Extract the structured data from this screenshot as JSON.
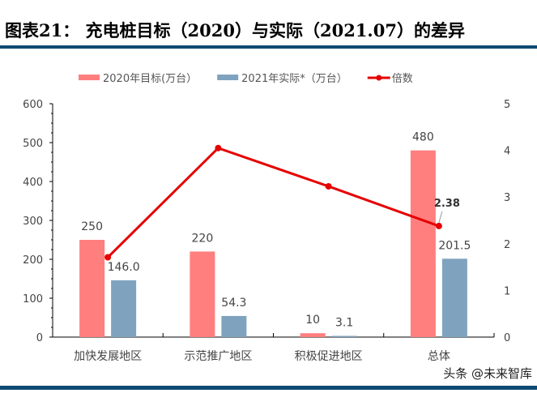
{
  "title": "图表21：  充电桩目标（2020）与实际（2021.07）的差异",
  "watermark": "头条 @未来智库",
  "chart_data": {
    "type": "bar",
    "categories": [
      "加快发展地区",
      "示范推广地区",
      "积极促进地区",
      "总体"
    ],
    "series": [
      {
        "name": "2020年目标(万台）",
        "type": "bar",
        "axis": "left",
        "color": "#ff7f7f",
        "values": [
          250,
          220,
          10,
          480
        ],
        "labels": [
          "250",
          "220",
          "10",
          "480"
        ]
      },
      {
        "name": "2021年实际*（万台）",
        "type": "bar",
        "axis": "left",
        "color": "#7fa3bf",
        "values": [
          146.0,
          54.3,
          3.1,
          201.5
        ],
        "labels": [
          "146.0",
          "54.3",
          "3.1",
          "201.5"
        ]
      },
      {
        "name": "倍数",
        "type": "line",
        "axis": "right",
        "color": "#e60000",
        "values": [
          1.71,
          4.05,
          3.23,
          2.38
        ],
        "labels": [
          "",
          "",
          "",
          "2.38"
        ]
      }
    ],
    "ylim_left": [
      0,
      600
    ],
    "yticks_left": [
      "0",
      "100",
      "200",
      "300",
      "400",
      "500",
      "600"
    ],
    "ylim_right": [
      0,
      5
    ],
    "yticks_right": [
      "0",
      "1",
      "2",
      "3",
      "4",
      "5"
    ],
    "legend": "top",
    "grid": false
  }
}
